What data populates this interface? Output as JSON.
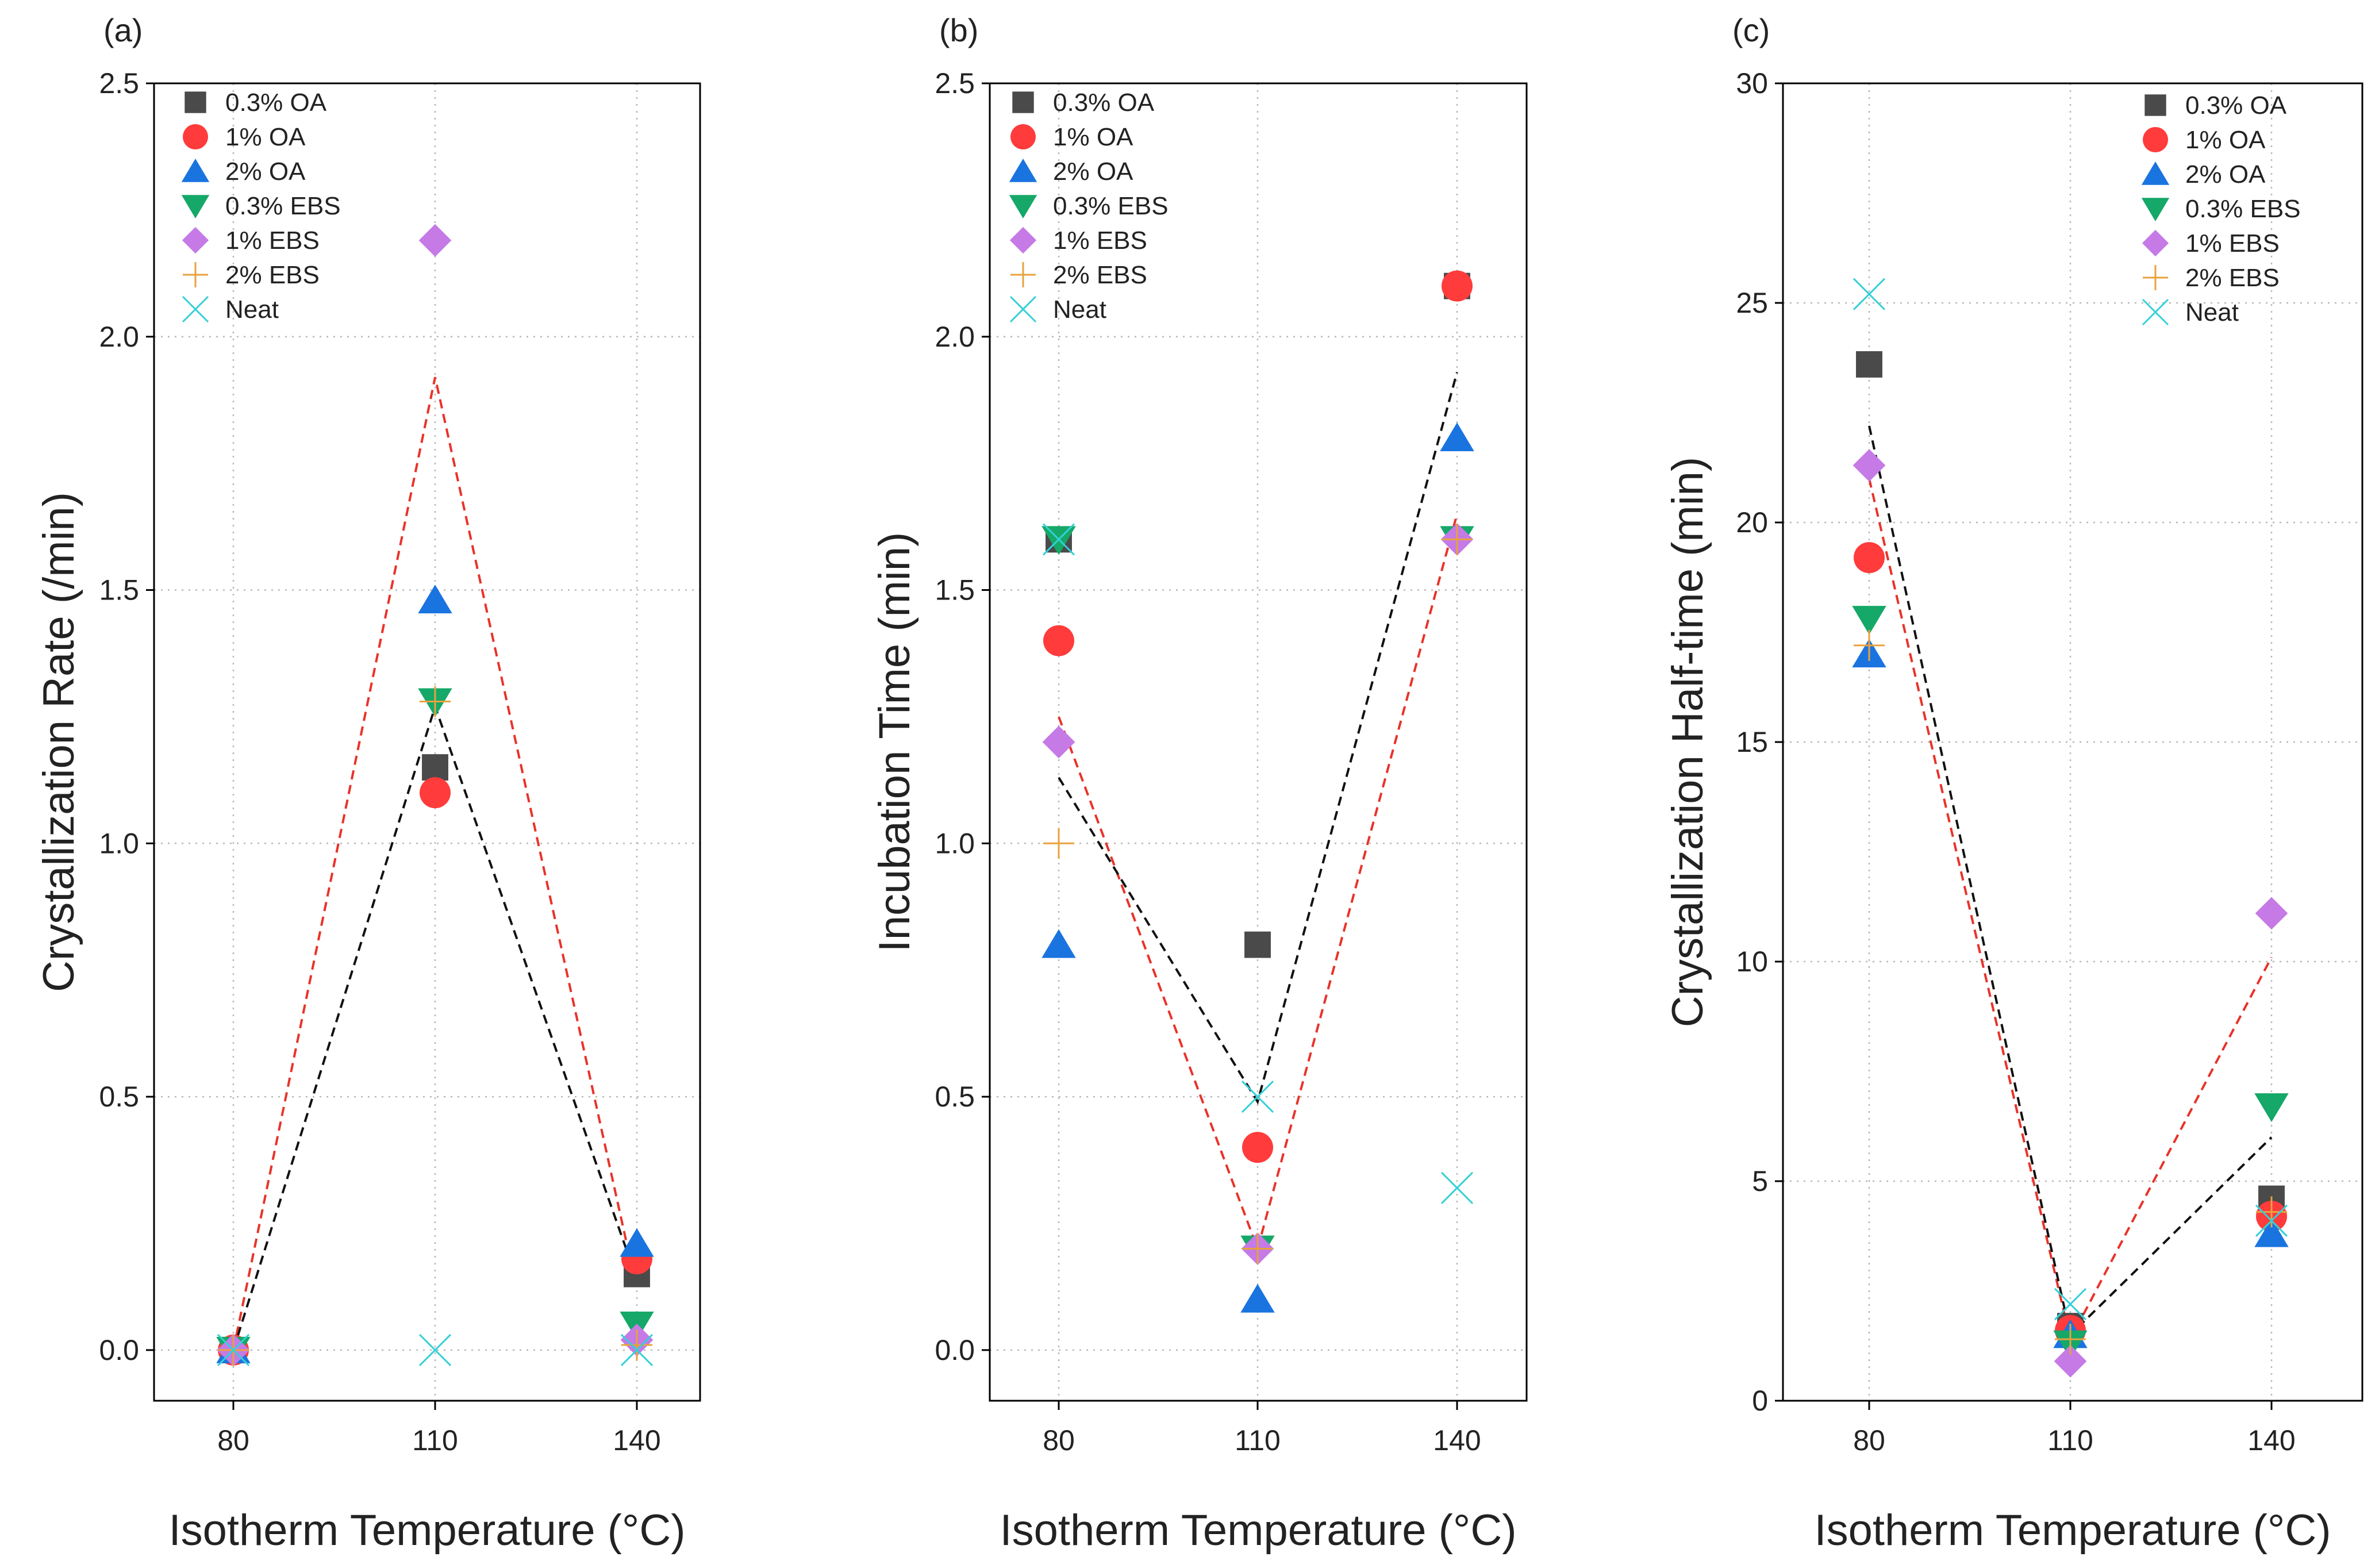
{
  "chart_data": [
    {
      "type": "scatter",
      "panel_label": "(a)",
      "xlabel": "Isotherm Temperature (°C)",
      "ylabel": "Crystallization Rate (/min)",
      "ylim": [
        -0.1,
        2.5
      ],
      "yticks": [
        0.0,
        0.5,
        1.0,
        1.5,
        2.0,
        2.5
      ],
      "ytick_labels": [
        "0.0",
        "0.5",
        "1.0",
        "1.5",
        "2.0",
        "2.5"
      ],
      "categories": [
        "80",
        "110",
        "140"
      ],
      "grid": true,
      "legend_position": "top-left",
      "series": [
        {
          "name": "0.3% OA",
          "marker": "square",
          "color": "#4a4a4a",
          "values": [
            0.0,
            1.15,
            0.15
          ]
        },
        {
          "name": "1% OA",
          "marker": "circle",
          "color": "#ff3b3b",
          "values": [
            0.0,
            1.1,
            0.18
          ]
        },
        {
          "name": "2% OA",
          "marker": "triangle-up",
          "color": "#1a74e0",
          "values": [
            0.0,
            1.48,
            0.21
          ]
        },
        {
          "name": "0.3% EBS",
          "marker": "triangle-down",
          "color": "#15a868",
          "values": [
            0.0,
            1.28,
            0.05
          ]
        },
        {
          "name": "1% EBS",
          "marker": "diamond",
          "color": "#c57ae6",
          "values": [
            0.0,
            2.19,
            0.02
          ]
        },
        {
          "name": "2% EBS",
          "marker": "plus",
          "color": "#e8a23d",
          "values": [
            0.0,
            1.28,
            0.01
          ]
        },
        {
          "name": "Neat",
          "marker": "x",
          "color": "#34d0d8",
          "values": [
            0.0,
            0.0,
            0.0
          ]
        }
      ],
      "trend_lines": [
        {
          "color": "#e8332a",
          "values": [
            0.0,
            1.92,
            0.12
          ]
        },
        {
          "color": "#111111",
          "values": [
            0.0,
            1.27,
            0.14
          ]
        }
      ]
    },
    {
      "type": "scatter",
      "panel_label": "(b)",
      "xlabel": "Isotherm Temperature (°C)",
      "ylabel": "Incubation Time (min)",
      "ylim": [
        -0.1,
        2.5
      ],
      "yticks": [
        0.0,
        0.5,
        1.0,
        1.5,
        2.0,
        2.5
      ],
      "ytick_labels": [
        "0.0",
        "0.5",
        "1.0",
        "1.5",
        "2.0",
        "2.5"
      ],
      "categories": [
        "80",
        "110",
        "140"
      ],
      "grid": true,
      "legend_position": "top-left",
      "series": [
        {
          "name": "0.3% OA",
          "marker": "square",
          "color": "#4a4a4a",
          "values": [
            1.6,
            0.8,
            2.1
          ]
        },
        {
          "name": "1% OA",
          "marker": "circle",
          "color": "#ff3b3b",
          "values": [
            1.4,
            0.4,
            2.1
          ]
        },
        {
          "name": "2% OA",
          "marker": "triangle-up",
          "color": "#1a74e0",
          "values": [
            0.8,
            0.1,
            1.8
          ]
        },
        {
          "name": "0.3% EBS",
          "marker": "triangle-down",
          "color": "#15a868",
          "values": [
            1.6,
            0.2,
            1.6
          ]
        },
        {
          "name": "1% EBS",
          "marker": "diamond",
          "color": "#c57ae6",
          "values": [
            1.2,
            0.2,
            1.6
          ]
        },
        {
          "name": "2% EBS",
          "marker": "plus",
          "color": "#e8a23d",
          "values": [
            1.0,
            0.2,
            1.6
          ]
        },
        {
          "name": "Neat",
          "marker": "x",
          "color": "#34d0d8",
          "values": [
            1.6,
            0.5,
            0.32
          ]
        }
      ],
      "trend_lines": [
        {
          "color": "#e8332a",
          "values": [
            1.25,
            0.2,
            1.65
          ]
        },
        {
          "color": "#111111",
          "values": [
            1.13,
            0.49,
            1.93
          ]
        }
      ]
    },
    {
      "type": "scatter",
      "panel_label": "(c)",
      "xlabel": "Isotherm Temperature (°C)",
      "ylabel": "Crystallization Half-time (min)",
      "ylim": [
        0,
        30
      ],
      "yticks": [
        0,
        5,
        10,
        15,
        20,
        25,
        30
      ],
      "ytick_labels": [
        "0",
        "5",
        "10",
        "15",
        "20",
        "25",
        "30"
      ],
      "categories": [
        "80",
        "110",
        "140"
      ],
      "grid": true,
      "legend_position": "top-right",
      "series": [
        {
          "name": "0.3% OA",
          "marker": "square",
          "color": "#4a4a4a",
          "values": [
            23.6,
            1.7,
            4.6
          ]
        },
        {
          "name": "1% OA",
          "marker": "circle",
          "color": "#ff3b3b",
          "values": [
            19.2,
            1.6,
            4.2
          ]
        },
        {
          "name": "2% OA",
          "marker": "triangle-up",
          "color": "#1a74e0",
          "values": [
            17.0,
            1.5,
            3.8
          ]
        },
        {
          "name": "0.3% EBS",
          "marker": "triangle-down",
          "color": "#15a868",
          "values": [
            17.8,
            1.3,
            6.7
          ]
        },
        {
          "name": "1% EBS",
          "marker": "diamond",
          "color": "#c57ae6",
          "values": [
            21.3,
            0.9,
            11.1
          ]
        },
        {
          "name": "2% EBS",
          "marker": "plus",
          "color": "#e8a23d",
          "values": [
            17.2,
            1.4,
            4.3
          ]
        },
        {
          "name": "Neat",
          "marker": "x",
          "color": "#34d0d8",
          "values": [
            25.2,
            2.2,
            4.1
          ]
        }
      ],
      "trend_lines": [
        {
          "color": "#e8332a",
          "values": [
            21.0,
            1.4,
            10.1
          ]
        },
        {
          "color": "#111111",
          "values": [
            22.2,
            1.5,
            6.0
          ]
        }
      ]
    }
  ]
}
